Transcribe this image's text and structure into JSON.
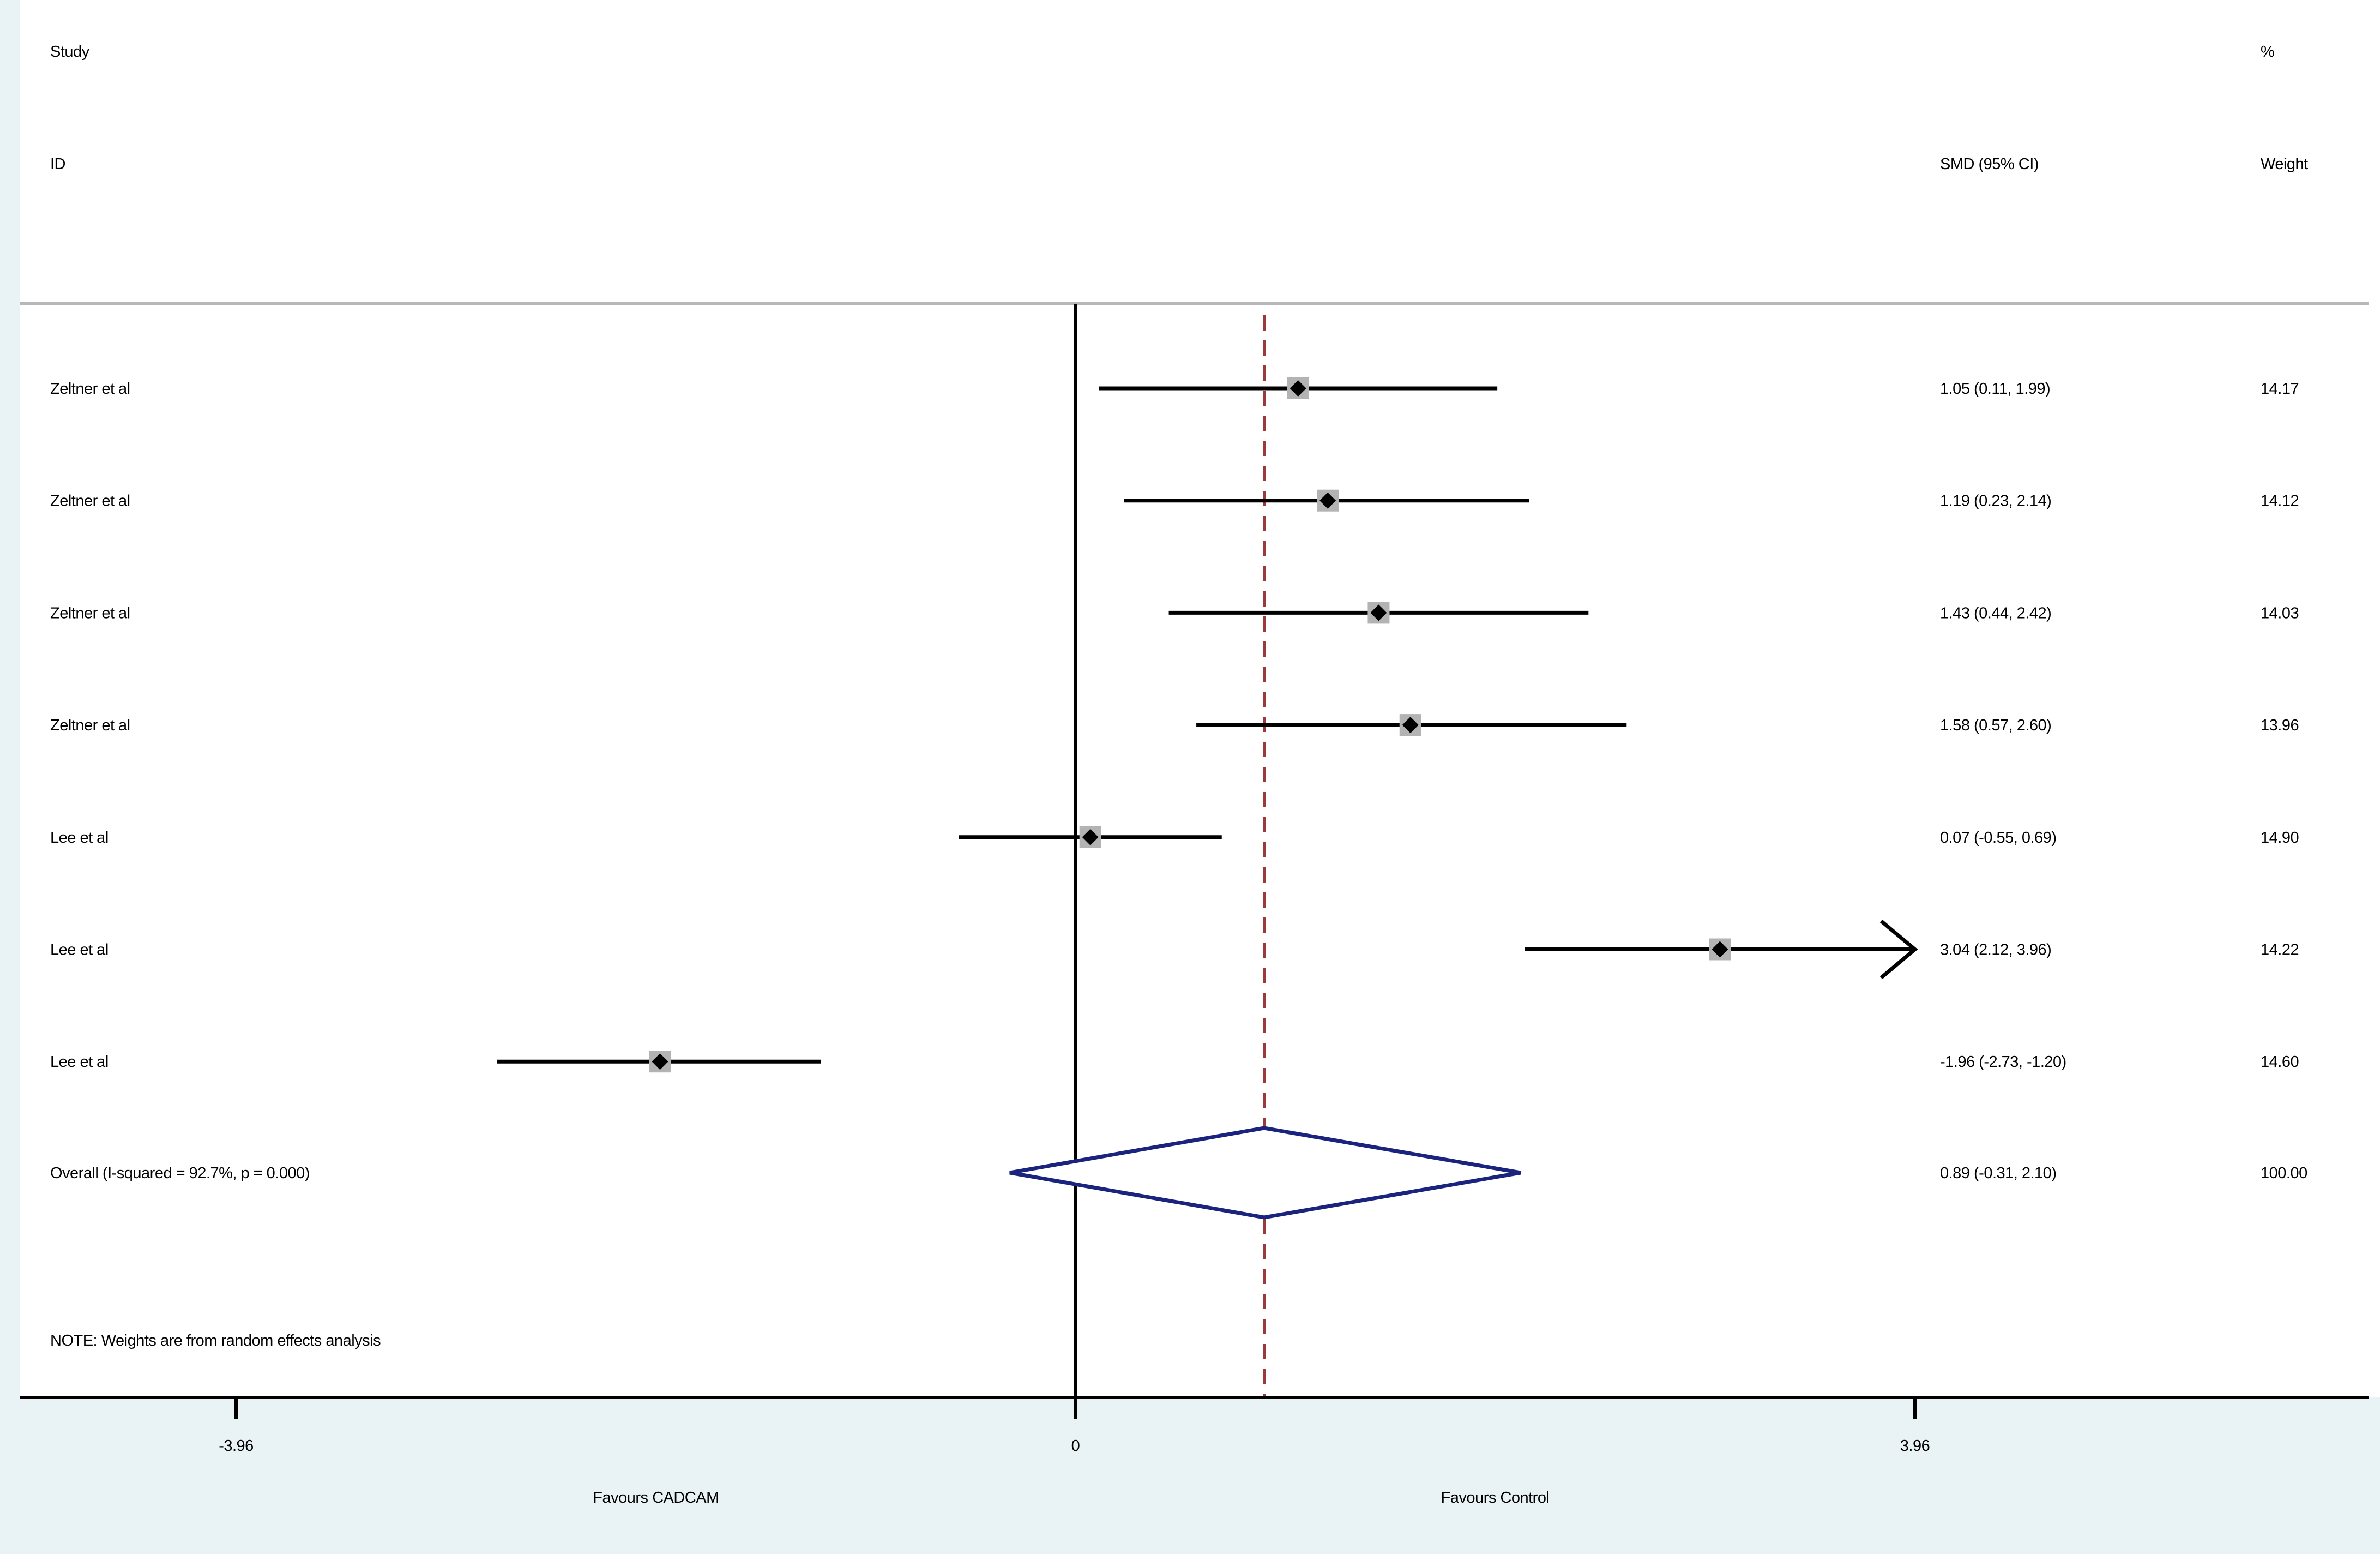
{
  "chart_data": {
    "type": "forest",
    "header": {
      "col_study_line1": "Study",
      "col_study_line2": "ID",
      "col_est": "SMD (95% CI)",
      "col_weight_line1": "%",
      "col_weight_line2": "Weight"
    },
    "studies": [
      {
        "name": "Zeltner et al",
        "smd": 1.05,
        "lower": 0.11,
        "upper": 1.99,
        "est_label": "1.05 (0.11, 1.99)",
        "weight": "14.17"
      },
      {
        "name": "Zeltner et al",
        "smd": 1.19,
        "lower": 0.23,
        "upper": 2.14,
        "est_label": "1.19 (0.23, 2.14)",
        "weight": "14.12"
      },
      {
        "name": "Zeltner et al",
        "smd": 1.43,
        "lower": 0.44,
        "upper": 2.42,
        "est_label": "1.43 (0.44, 2.42)",
        "weight": "14.03"
      },
      {
        "name": "Zeltner et al",
        "smd": 1.58,
        "lower": 0.57,
        "upper": 2.6,
        "est_label": "1.58 (0.57, 2.60)",
        "weight": "13.96"
      },
      {
        "name": "Lee et al",
        "smd": 0.07,
        "lower": -0.55,
        "upper": 0.69,
        "est_label": "0.07 (-0.55, 0.69)",
        "weight": "14.90"
      },
      {
        "name": "Lee et al",
        "smd": 3.04,
        "lower": 2.12,
        "upper": 3.96,
        "est_label": "3.04 (2.12, 3.96)",
        "weight": "14.22"
      },
      {
        "name": "Lee et al",
        "smd": -1.96,
        "lower": -2.73,
        "upper": -1.2,
        "est_label": "-1.96 (-2.73, -1.20)",
        "weight": "14.60"
      }
    ],
    "overall": {
      "label": "Overall  (I-squared = 92.7%, p = 0.000)",
      "smd": 0.89,
      "lower": -0.31,
      "upper": 2.1,
      "est_label": "0.89 (-0.31, 2.10)",
      "weight": "100.00"
    },
    "note": "NOTE: Weights are from random effects analysis",
    "xaxis": {
      "ticks": [
        -3.96,
        0,
        3.96
      ],
      "tick_labels": [
        "-3.96",
        "0",
        "3.96"
      ],
      "range": [
        -3.96,
        3.96
      ],
      "left_label": "Favours CADCAM",
      "right_label": "Favours Control"
    },
    "colors": {
      "ci_line": "#000000",
      "weight_box": "#b3b3b3",
      "point": "#000000",
      "null_line": "#000000",
      "overall_line": "#9b3a3a",
      "overall_diamond": "#1a237e",
      "background_band": "#e9f2f4"
    }
  }
}
